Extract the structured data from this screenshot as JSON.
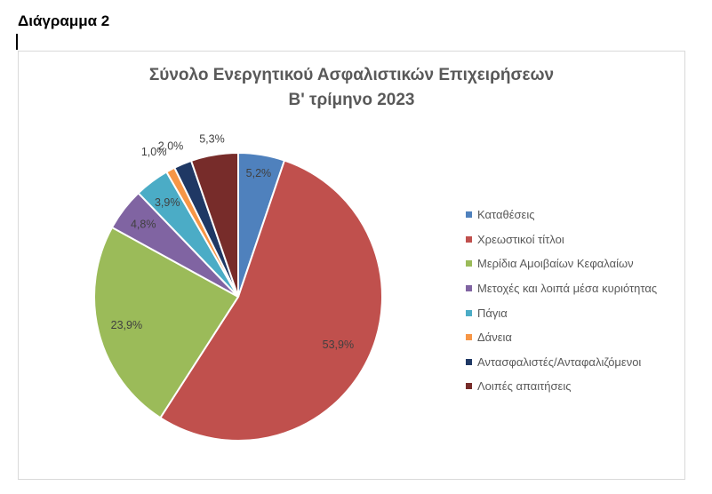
{
  "document": {
    "heading": "Διάγραμμα 2"
  },
  "chart_data": {
    "type": "pie",
    "title": [
      "Σύνολο Ενεργητικού Ασφαλιστικών Επιχειρήσεων",
      "Β' τρίμηνο 2023"
    ],
    "legend_position": "right",
    "slices": [
      {
        "label": "Καταθέσεις",
        "value": 5.2,
        "display": "5,2%",
        "color": "#4f81bd"
      },
      {
        "label": "Χρεωστικοί τίτλοι",
        "value": 53.9,
        "display": "53,9%",
        "color": "#c0504d"
      },
      {
        "label": "Μερίδια Αμοιβαίων Κεφαλαίων",
        "value": 23.9,
        "display": "23,9%",
        "color": "#9bbb59"
      },
      {
        "label": "Μετοχές και λοιπά μέσα κυριότητας",
        "value": 4.8,
        "display": "4,8%",
        "color": "#8064a2"
      },
      {
        "label": "Πάγια",
        "value": 3.9,
        "display": "3,9%",
        "color": "#4bacc6"
      },
      {
        "label": "Δάνεια",
        "value": 1.0,
        "display": "1,0%",
        "color": "#f79646"
      },
      {
        "label": "Αντασφαλιστές/Ανταφαλιζόμενοι",
        "value": 2.0,
        "display": "2,0%",
        "color": "#1f3864"
      },
      {
        "label": "Λοιπές απαιτήσεις",
        "value": 5.3,
        "display": "5,3%",
        "color": "#772c2a"
      }
    ]
  }
}
